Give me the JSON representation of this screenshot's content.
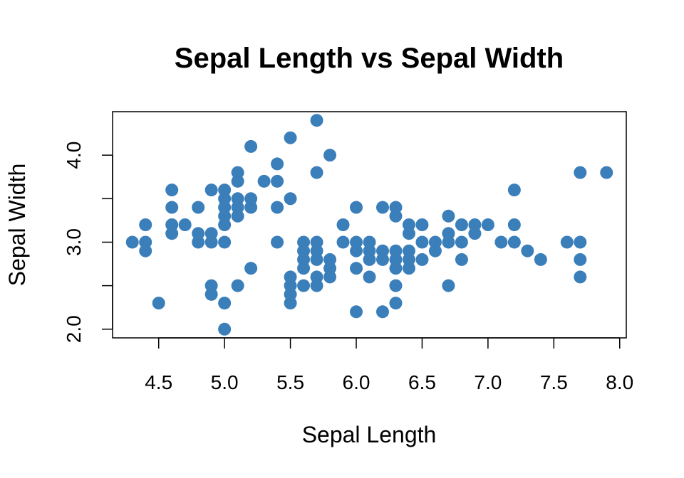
{
  "chart_data": {
    "type": "scatter",
    "title": "Sepal Length vs Sepal Width",
    "xlabel": "Sepal Length",
    "ylabel": "Sepal Width",
    "xlim": [
      4.15,
      8.05
    ],
    "ylim": [
      1.9,
      4.5
    ],
    "xticks": [
      4.5,
      5.0,
      5.5,
      6.0,
      6.5,
      7.0,
      7.5,
      8.0
    ],
    "xtick_labels": [
      "4.5",
      "5.0",
      "5.5",
      "6.0",
      "6.5",
      "7.0",
      "7.5",
      "8.0"
    ],
    "yticks": [
      2.0,
      2.5,
      3.0,
      3.5,
      4.0
    ],
    "ytick_labels": [
      "2.0",
      "",
      "3.0",
      "",
      "4.0"
    ],
    "grid": false,
    "point_color": "#3A7EBA",
    "series": [
      {
        "points": [
          [
            4.3,
            3.0
          ],
          [
            4.4,
            3.2
          ],
          [
            4.4,
            3.0
          ],
          [
            4.4,
            2.9
          ],
          [
            4.5,
            2.3
          ],
          [
            4.6,
            3.6
          ],
          [
            4.6,
            3.4
          ],
          [
            4.6,
            3.2
          ],
          [
            4.6,
            3.1
          ],
          [
            4.7,
            3.2
          ],
          [
            4.8,
            3.4
          ],
          [
            4.8,
            3.1
          ],
          [
            4.8,
            3.0
          ],
          [
            4.9,
            3.6
          ],
          [
            4.9,
            3.1
          ],
          [
            4.9,
            3.0
          ],
          [
            4.9,
            2.5
          ],
          [
            4.9,
            2.4
          ],
          [
            5.0,
            3.6
          ],
          [
            5.0,
            3.5
          ],
          [
            5.0,
            3.4
          ],
          [
            5.0,
            3.3
          ],
          [
            5.0,
            3.2
          ],
          [
            5.0,
            3.0
          ],
          [
            5.0,
            2.3
          ],
          [
            5.0,
            2.0
          ],
          [
            5.1,
            3.8
          ],
          [
            5.1,
            3.7
          ],
          [
            5.1,
            3.5
          ],
          [
            5.1,
            3.4
          ],
          [
            5.1,
            3.3
          ],
          [
            5.1,
            2.5
          ],
          [
            5.2,
            4.1
          ],
          [
            5.2,
            3.5
          ],
          [
            5.2,
            3.4
          ],
          [
            5.2,
            2.7
          ],
          [
            5.3,
            3.7
          ],
          [
            5.4,
            3.9
          ],
          [
            5.4,
            3.7
          ],
          [
            5.4,
            3.4
          ],
          [
            5.4,
            3.0
          ],
          [
            5.5,
            4.2
          ],
          [
            5.5,
            3.5
          ],
          [
            5.5,
            2.6
          ],
          [
            5.5,
            2.5
          ],
          [
            5.5,
            2.4
          ],
          [
            5.5,
            2.3
          ],
          [
            5.6,
            3.0
          ],
          [
            5.6,
            2.9
          ],
          [
            5.6,
            2.8
          ],
          [
            5.6,
            2.7
          ],
          [
            5.6,
            2.5
          ],
          [
            5.7,
            4.4
          ],
          [
            5.7,
            3.8
          ],
          [
            5.7,
            3.0
          ],
          [
            5.7,
            2.9
          ],
          [
            5.7,
            2.8
          ],
          [
            5.7,
            2.6
          ],
          [
            5.7,
            2.5
          ],
          [
            5.8,
            4.0
          ],
          [
            5.8,
            2.8
          ],
          [
            5.8,
            2.7
          ],
          [
            5.8,
            2.6
          ],
          [
            5.9,
            3.2
          ],
          [
            5.9,
            3.0
          ],
          [
            6.0,
            3.4
          ],
          [
            6.0,
            3.0
          ],
          [
            6.0,
            2.9
          ],
          [
            6.0,
            2.7
          ],
          [
            6.0,
            2.2
          ],
          [
            6.1,
            3.0
          ],
          [
            6.1,
            2.9
          ],
          [
            6.1,
            2.8
          ],
          [
            6.1,
            2.6
          ],
          [
            6.2,
            3.4
          ],
          [
            6.2,
            2.9
          ],
          [
            6.2,
            2.8
          ],
          [
            6.2,
            2.2
          ],
          [
            6.3,
            3.4
          ],
          [
            6.3,
            3.3
          ],
          [
            6.3,
            2.9
          ],
          [
            6.3,
            2.8
          ],
          [
            6.3,
            2.7
          ],
          [
            6.3,
            2.5
          ],
          [
            6.3,
            2.3
          ],
          [
            6.4,
            3.2
          ],
          [
            6.4,
            3.1
          ],
          [
            6.4,
            2.9
          ],
          [
            6.4,
            2.8
          ],
          [
            6.4,
            2.7
          ],
          [
            6.5,
            3.2
          ],
          [
            6.5,
            3.0
          ],
          [
            6.5,
            2.8
          ],
          [
            6.6,
            3.0
          ],
          [
            6.6,
            2.9
          ],
          [
            6.7,
            3.3
          ],
          [
            6.7,
            3.1
          ],
          [
            6.7,
            3.0
          ],
          [
            6.7,
            2.5
          ],
          [
            6.8,
            3.2
          ],
          [
            6.8,
            3.0
          ],
          [
            6.8,
            2.8
          ],
          [
            6.9,
            3.2
          ],
          [
            6.9,
            3.1
          ],
          [
            7.0,
            3.2
          ],
          [
            7.1,
            3.0
          ],
          [
            7.2,
            3.6
          ],
          [
            7.2,
            3.2
          ],
          [
            7.2,
            3.0
          ],
          [
            7.3,
            2.9
          ],
          [
            7.4,
            2.8
          ],
          [
            7.6,
            3.0
          ],
          [
            7.7,
            3.8
          ],
          [
            7.7,
            3.0
          ],
          [
            7.7,
            2.8
          ],
          [
            7.7,
            2.6
          ],
          [
            7.9,
            3.8
          ]
        ]
      }
    ]
  }
}
